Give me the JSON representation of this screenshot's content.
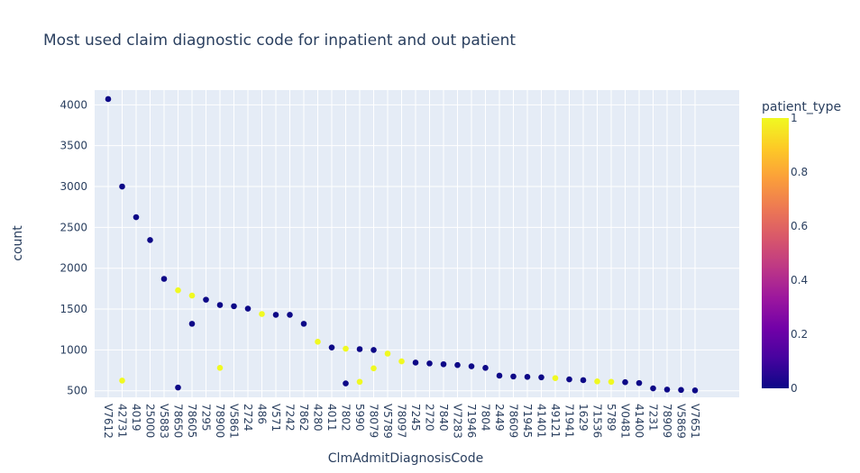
{
  "chart_data": {
    "type": "scatter",
    "title": "Most used claim diagnostic code for inpatient and out patient",
    "xlabel": "ClmAdmitDiagnosisCode",
    "ylabel": "count",
    "categories": [
      "V7612",
      "42731",
      "4019",
      "25000",
      "V5883",
      "78650",
      "78605",
      "7295",
      "78900",
      "V5861",
      "2724",
      "486",
      "V571",
      "7242",
      "7862",
      "4280",
      "4011",
      "7802",
      "5990",
      "78079",
      "V5789",
      "78097",
      "7245",
      "2720",
      "7840",
      "V7283",
      "71946",
      "7804",
      "2449",
      "78609",
      "71945",
      "41401",
      "49121",
      "71941",
      "1629",
      "71536",
      "5789",
      "V0481",
      "41400",
      "7231",
      "78909",
      "V5869",
      "V7651"
    ],
    "y_ticks": [
      500,
      1000,
      1500,
      2000,
      2500,
      3000,
      3500,
      4000
    ],
    "ylim": [
      420,
      4180
    ],
    "grid": true,
    "points": [
      {
        "x": "V7612",
        "y": 4070,
        "patient_type": 0
      },
      {
        "x": "42731",
        "y": 3000,
        "patient_type": 0
      },
      {
        "x": "42731",
        "y": 625,
        "patient_type": 1
      },
      {
        "x": "4019",
        "y": 2625,
        "patient_type": 0
      },
      {
        "x": "25000",
        "y": 2345,
        "patient_type": 0
      },
      {
        "x": "V5883",
        "y": 1870,
        "patient_type": 0
      },
      {
        "x": "78650",
        "y": 1730,
        "patient_type": 1
      },
      {
        "x": "78650",
        "y": 540,
        "patient_type": 0
      },
      {
        "x": "78605",
        "y": 1665,
        "patient_type": 1
      },
      {
        "x": "78605",
        "y": 1320,
        "patient_type": 0
      },
      {
        "x": "7295",
        "y": 1615,
        "patient_type": 0
      },
      {
        "x": "78900",
        "y": 1550,
        "patient_type": 0
      },
      {
        "x": "78900",
        "y": 780,
        "patient_type": 1
      },
      {
        "x": "V5861",
        "y": 1535,
        "patient_type": 0
      },
      {
        "x": "2724",
        "y": 1505,
        "patient_type": 0
      },
      {
        "x": "486",
        "y": 1440,
        "patient_type": 1
      },
      {
        "x": "V571",
        "y": 1430,
        "patient_type": 0
      },
      {
        "x": "7242",
        "y": 1430,
        "patient_type": 0
      },
      {
        "x": "7862",
        "y": 1320,
        "patient_type": 0
      },
      {
        "x": "4280",
        "y": 1100,
        "patient_type": 1
      },
      {
        "x": "4011",
        "y": 1030,
        "patient_type": 0
      },
      {
        "x": "7802",
        "y": 1015,
        "patient_type": 1
      },
      {
        "x": "7802",
        "y": 590,
        "patient_type": 0
      },
      {
        "x": "5990",
        "y": 1010,
        "patient_type": 0
      },
      {
        "x": "5990",
        "y": 610,
        "patient_type": 1
      },
      {
        "x": "78079",
        "y": 1000,
        "patient_type": 0
      },
      {
        "x": "78079",
        "y": 775,
        "patient_type": 1
      },
      {
        "x": "V5789",
        "y": 955,
        "patient_type": 1
      },
      {
        "x": "78097",
        "y": 860,
        "patient_type": 1
      },
      {
        "x": "7245",
        "y": 845,
        "patient_type": 0
      },
      {
        "x": "2720",
        "y": 835,
        "patient_type": 0
      },
      {
        "x": "7840",
        "y": 825,
        "patient_type": 0
      },
      {
        "x": "V7283",
        "y": 815,
        "patient_type": 0
      },
      {
        "x": "71946",
        "y": 800,
        "patient_type": 0
      },
      {
        "x": "7804",
        "y": 780,
        "patient_type": 0
      },
      {
        "x": "2449",
        "y": 685,
        "patient_type": 0
      },
      {
        "x": "78609",
        "y": 675,
        "patient_type": 0
      },
      {
        "x": "71945",
        "y": 670,
        "patient_type": 0
      },
      {
        "x": "41401",
        "y": 665,
        "patient_type": 0
      },
      {
        "x": "49121",
        "y": 655,
        "patient_type": 1
      },
      {
        "x": "71941",
        "y": 640,
        "patient_type": 0
      },
      {
        "x": "1629",
        "y": 630,
        "patient_type": 0
      },
      {
        "x": "71536",
        "y": 615,
        "patient_type": 1
      },
      {
        "x": "5789",
        "y": 610,
        "patient_type": 1
      },
      {
        "x": "V0481",
        "y": 605,
        "patient_type": 0
      },
      {
        "x": "41400",
        "y": 595,
        "patient_type": 0
      },
      {
        "x": "7231",
        "y": 530,
        "patient_type": 0
      },
      {
        "x": "78909",
        "y": 515,
        "patient_type": 0
      },
      {
        "x": "V5869",
        "y": 510,
        "patient_type": 0
      },
      {
        "x": "V7651",
        "y": 505,
        "patient_type": 0
      }
    ],
    "colorbar": {
      "title": "patient_type",
      "min": 0,
      "max": 1,
      "ticks": [
        "0",
        "0.2",
        "0.4",
        "0.6",
        "0.8",
        "1"
      ],
      "colors": [
        "#0d0887",
        "#46039f",
        "#7201a8",
        "#9c179e",
        "#bd3786",
        "#d8576b",
        "#ed7953",
        "#fb9f3a",
        "#fdca26",
        "#f0f921"
      ]
    },
    "colors": {
      "plot_bg": "#e5ecf6",
      "grid": "#ffffff",
      "text": "#2a3f5f"
    }
  }
}
